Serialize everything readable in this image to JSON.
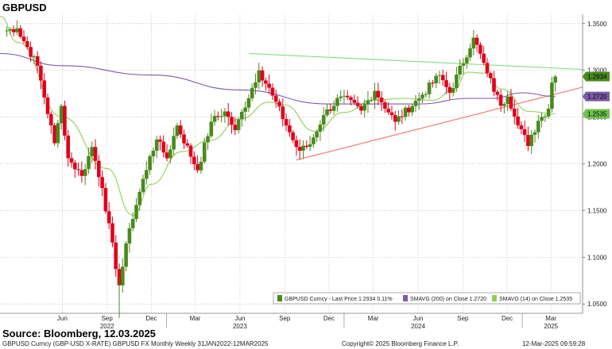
{
  "title": "GBPUSD",
  "source": "Source: Bloomberg, 12.03.2025",
  "footer": {
    "left": "GBPUSD Curncy (GBP-USD X-RATE) GBPUSD FX Monthly  Weekly 31JAN2022-12MAR2025",
    "center": "Copyright© 2025 Bloomberg Finance L.P.",
    "right": "12-Mar-2025 09:59:28"
  },
  "colors": {
    "up": "#4a8a1c",
    "down": "#e0001a",
    "sma200": "#7b5aa6",
    "sma14": "#8fd14f",
    "trend_top": "#7fe07f",
    "trend_bottom": "#f07070",
    "grid": "#b5b5b5"
  },
  "chart_data": {
    "type": "candlestick",
    "title": "GBPUSD",
    "ylim": [
      1.04,
      1.36
    ],
    "y_ticks": [
      "1.0500",
      "1.1000",
      "1.1500",
      "1.2000",
      "1.2500",
      "1.3000",
      "1.3500"
    ],
    "y_tick_values": [
      1.05,
      1.1,
      1.15,
      1.2,
      1.25,
      1.3,
      1.35
    ],
    "x_tick_labels": [
      "Jun",
      "Sep",
      "Dec",
      "Mar",
      "Jun",
      "Sep",
      "Dec",
      "Mar",
      "Jun",
      "Sep",
      "Dec",
      "Mar"
    ],
    "x_tick_dates": [
      "2022-06-01",
      "2022-09-01",
      "2022-12-01",
      "2023-03-01",
      "2023-06-01",
      "2023-09-01",
      "2023-12-01",
      "2024-03-01",
      "2024-06-01",
      "2024-09-01",
      "2024-12-01",
      "2025-03-01"
    ],
    "year_labels": [
      "2022",
      "2023",
      "2024",
      "2025"
    ],
    "year_label_dates": [
      "2022-09-01",
      "2023-06-01",
      "2024-06-01",
      "2025-03-01"
    ],
    "x_range": [
      "2022-01-24",
      "2025-05-05"
    ],
    "legend": [
      {
        "label": "GBPUSD Curncy - Last Price  1.2934   0.11%",
        "series": "price"
      },
      {
        "label": "SMAVG (200)  on Close  1.2720",
        "series": "sma200"
      },
      {
        "label": "SMAVG (14)  on Close  1.2535",
        "series": "sma14"
      }
    ],
    "last_values": {
      "price": "1.2934",
      "sma200": "1.2720",
      "sma14": "1.2535"
    },
    "anchors": {
      "start_date": "2022-01-31",
      "start_close": 1.342,
      "points": [
        [
          "2022-02-28",
          1.345
        ],
        [
          "2022-04-11",
          1.305
        ],
        [
          "2022-05-16",
          1.222
        ],
        [
          "2022-05-30",
          1.262
        ],
        [
          "2022-06-13",
          1.206
        ],
        [
          "2022-07-11",
          1.187
        ],
        [
          "2022-08-01",
          1.218
        ],
        [
          "2022-08-22",
          1.174
        ],
        [
          "2022-09-26",
          1.07
        ],
        [
          "2022-10-17",
          1.131
        ],
        [
          "2022-11-28",
          1.208
        ],
        [
          "2022-12-12",
          1.226
        ],
        [
          "2023-01-02",
          1.206
        ],
        [
          "2023-01-23",
          1.241
        ],
        [
          "2023-03-06",
          1.193
        ],
        [
          "2023-04-03",
          1.245
        ],
        [
          "2023-05-01",
          1.256
        ],
        [
          "2023-05-22",
          1.236
        ],
        [
          "2023-07-10",
          1.3
        ],
        [
          "2023-08-07",
          1.273
        ],
        [
          "2023-09-25",
          1.218
        ],
        [
          "2023-10-02",
          1.214
        ],
        [
          "2023-10-23",
          1.221
        ],
        [
          "2023-11-20",
          1.252
        ],
        [
          "2023-12-25",
          1.272
        ],
        [
          "2024-02-05",
          1.257
        ],
        [
          "2024-03-04",
          1.278
        ],
        [
          "2024-04-15",
          1.245
        ],
        [
          "2024-06-10",
          1.274
        ],
        [
          "2024-07-15",
          1.295
        ],
        [
          "2024-08-05",
          1.276
        ],
        [
          "2024-09-23",
          1.335
        ],
        [
          "2024-10-21",
          1.297
        ],
        [
          "2024-11-18",
          1.262
        ],
        [
          "2024-12-02",
          1.272
        ],
        [
          "2025-01-13",
          1.219
        ],
        [
          "2025-02-03",
          1.246
        ],
        [
          "2025-02-24",
          1.259
        ],
        [
          "2025-03-03",
          1.287
        ],
        [
          "2025-03-10",
          1.2934
        ]
      ]
    },
    "sma200": [
      [
        "2022-01-24",
        1.318
      ],
      [
        "2022-06-01",
        1.305
      ],
      [
        "2022-12-01",
        1.295
      ],
      [
        "2023-06-01",
        1.279
      ],
      [
        "2023-12-01",
        1.264
      ],
      [
        "2024-06-01",
        1.264
      ],
      [
        "2024-09-15",
        1.27
      ],
      [
        "2024-11-01",
        1.27
      ],
      [
        "2025-01-01",
        1.276
      ],
      [
        "2025-03-10",
        1.272
      ]
    ],
    "sma14": [
      [
        "2022-01-24",
        1.358
      ],
      [
        "2022-03-01",
        1.33
      ],
      [
        "2022-06-01",
        1.25
      ],
      [
        "2022-09-01",
        1.195
      ],
      [
        "2022-10-24",
        1.145
      ],
      [
        "2022-12-01",
        1.178
      ],
      [
        "2023-02-01",
        1.213
      ],
      [
        "2023-04-01",
        1.225
      ],
      [
        "2023-06-01",
        1.248
      ],
      [
        "2023-08-01",
        1.266
      ],
      [
        "2023-09-01",
        1.263
      ],
      [
        "2023-11-01",
        1.235
      ],
      [
        "2024-01-01",
        1.255
      ],
      [
        "2024-03-01",
        1.268
      ],
      [
        "2024-05-01",
        1.27
      ],
      [
        "2024-07-01",
        1.268
      ],
      [
        "2024-08-15",
        1.28
      ],
      [
        "2024-09-10",
        1.298
      ],
      [
        "2024-10-15",
        1.297
      ],
      [
        "2024-11-20",
        1.28
      ],
      [
        "2025-01-15",
        1.256
      ],
      [
        "2025-03-10",
        1.2535
      ]
    ],
    "trendlines": [
      {
        "name": "resistance",
        "start": [
          "2023-06-19",
          1.318
        ],
        "end": [
          "2025-05-05",
          1.301
        ]
      },
      {
        "name": "support",
        "start": [
          "2023-09-25",
          1.204
        ],
        "end": [
          "2025-05-05",
          1.282
        ]
      }
    ]
  }
}
